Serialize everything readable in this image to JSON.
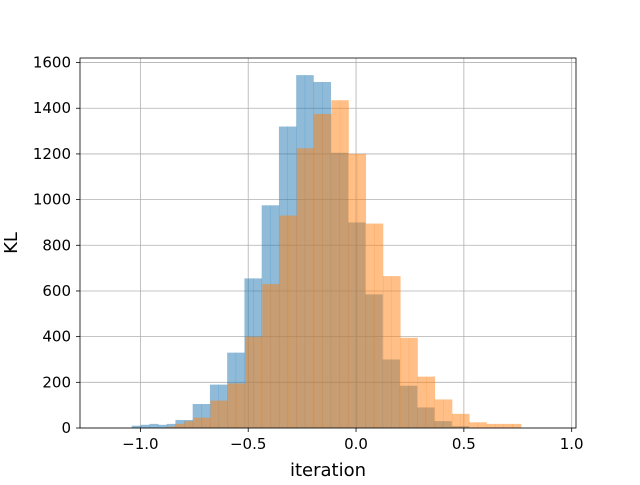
{
  "chart_data": {
    "type": "bar",
    "title": "",
    "xlabel": "iteration",
    "ylabel": "KL",
    "xlim": [
      -1.28,
      1.02
    ],
    "ylim": [
      0,
      1620
    ],
    "grid": true,
    "legend": "none",
    "x_ticks": [
      {
        "value": -1.0,
        "label": "−1.0"
      },
      {
        "value": -0.5,
        "label": "−0.5"
      },
      {
        "value": 0.0,
        "label": "0.0"
      },
      {
        "value": 0.5,
        "label": "0.5"
      },
      {
        "value": 1.0,
        "label": "1.0"
      }
    ],
    "y_ticks": [
      {
        "value": 0,
        "label": "0"
      },
      {
        "value": 200,
        "label": "200"
      },
      {
        "value": 400,
        "label": "400"
      },
      {
        "value": 600,
        "label": "600"
      },
      {
        "value": 800,
        "label": "800"
      },
      {
        "value": 1000,
        "label": "1000"
      },
      {
        "value": 1200,
        "label": "1200"
      },
      {
        "value": 1400,
        "label": "1400"
      },
      {
        "value": 1600,
        "label": "1600"
      }
    ],
    "series": [
      {
        "color": "#1f77b4",
        "opacity": 0.5,
        "bins": [
          {
            "x0": -1.04,
            "x1": -0.9975,
            "y": 10
          },
          {
            "x0": -0.9975,
            "x1": -0.9575,
            "y": 14
          },
          {
            "x0": -0.9575,
            "x1": -0.9175,
            "y": 18
          },
          {
            "x0": -0.9175,
            "x1": -0.8775,
            "y": 14
          },
          {
            "x0": -0.8775,
            "x1": -0.8375,
            "y": 18
          },
          {
            "x0": -0.8375,
            "x1": -0.7975,
            "y": 35
          },
          {
            "x0": -0.7975,
            "x1": -0.7575,
            "y": 35
          },
          {
            "x0": -0.7575,
            "x1": -0.7175,
            "y": 105
          },
          {
            "x0": -0.7175,
            "x1": -0.6775,
            "y": 105
          },
          {
            "x0": -0.6775,
            "x1": -0.6375,
            "y": 190
          },
          {
            "x0": -0.6375,
            "x1": -0.5975,
            "y": 190
          },
          {
            "x0": -0.5975,
            "x1": -0.5575,
            "y": 330
          },
          {
            "x0": -0.5575,
            "x1": -0.5175,
            "y": 330
          },
          {
            "x0": -0.5175,
            "x1": -0.4775,
            "y": 655
          },
          {
            "x0": -0.4775,
            "x1": -0.4375,
            "y": 655
          },
          {
            "x0": -0.4375,
            "x1": -0.3975,
            "y": 975
          },
          {
            "x0": -0.3975,
            "x1": -0.3575,
            "y": 975
          },
          {
            "x0": -0.3575,
            "x1": -0.3175,
            "y": 1320
          },
          {
            "x0": -0.3175,
            "x1": -0.2775,
            "y": 1320
          },
          {
            "x0": -0.2775,
            "x1": -0.2375,
            "y": 1545
          },
          {
            "x0": -0.2375,
            "x1": -0.1975,
            "y": 1545
          },
          {
            "x0": -0.1975,
            "x1": -0.1575,
            "y": 1515
          },
          {
            "x0": -0.1575,
            "x1": -0.1175,
            "y": 1515
          },
          {
            "x0": -0.1175,
            "x1": -0.0775,
            "y": 1205
          },
          {
            "x0": -0.0775,
            "x1": -0.0375,
            "y": 1205
          },
          {
            "x0": -0.0375,
            "x1": 0.0025,
            "y": 900
          },
          {
            "x0": 0.0025,
            "x1": 0.0425,
            "y": 900
          },
          {
            "x0": 0.0425,
            "x1": 0.0825,
            "y": 585
          },
          {
            "x0": 0.0825,
            "x1": 0.1225,
            "y": 585
          },
          {
            "x0": 0.1225,
            "x1": 0.1625,
            "y": 300
          },
          {
            "x0": 0.1625,
            "x1": 0.2025,
            "y": 300
          },
          {
            "x0": 0.2025,
            "x1": 0.2425,
            "y": 185
          },
          {
            "x0": 0.2425,
            "x1": 0.2825,
            "y": 185
          },
          {
            "x0": 0.2825,
            "x1": 0.3225,
            "y": 90
          },
          {
            "x0": 0.3225,
            "x1": 0.3625,
            "y": 90
          },
          {
            "x0": 0.3625,
            "x1": 0.4025,
            "y": 30
          },
          {
            "x0": 0.4025,
            "x1": 0.4425,
            "y": 30
          },
          {
            "x0": 0.4425,
            "x1": 0.4825,
            "y": 8
          },
          {
            "x0": 0.4825,
            "x1": 0.5225,
            "y": 8
          }
        ]
      },
      {
        "color": "#ff7f0e",
        "opacity": 0.5,
        "bins": [
          {
            "x0": -0.875,
            "x1": -0.835,
            "y": 6
          },
          {
            "x0": -0.835,
            "x1": -0.795,
            "y": 18
          },
          {
            "x0": -0.795,
            "x1": -0.755,
            "y": 30
          },
          {
            "x0": -0.755,
            "x1": -0.715,
            "y": 45
          },
          {
            "x0": -0.715,
            "x1": -0.675,
            "y": 45
          },
          {
            "x0": -0.675,
            "x1": -0.635,
            "y": 120
          },
          {
            "x0": -0.635,
            "x1": -0.595,
            "y": 120
          },
          {
            "x0": -0.595,
            "x1": -0.555,
            "y": 195
          },
          {
            "x0": -0.555,
            "x1": -0.515,
            "y": 195
          },
          {
            "x0": -0.515,
            "x1": -0.475,
            "y": 400
          },
          {
            "x0": -0.475,
            "x1": -0.435,
            "y": 400
          },
          {
            "x0": -0.435,
            "x1": -0.395,
            "y": 630
          },
          {
            "x0": -0.395,
            "x1": -0.355,
            "y": 630
          },
          {
            "x0": -0.355,
            "x1": -0.315,
            "y": 930
          },
          {
            "x0": -0.315,
            "x1": -0.275,
            "y": 930
          },
          {
            "x0": -0.275,
            "x1": -0.235,
            "y": 1225
          },
          {
            "x0": -0.235,
            "x1": -0.195,
            "y": 1225
          },
          {
            "x0": -0.195,
            "x1": -0.155,
            "y": 1375
          },
          {
            "x0": -0.155,
            "x1": -0.115,
            "y": 1375
          },
          {
            "x0": -0.115,
            "x1": -0.075,
            "y": 1435
          },
          {
            "x0": -0.075,
            "x1": -0.035,
            "y": 1435
          },
          {
            "x0": -0.035,
            "x1": 0.005,
            "y": 1200
          },
          {
            "x0": 0.005,
            "x1": 0.045,
            "y": 1200
          },
          {
            "x0": 0.045,
            "x1": 0.085,
            "y": 895
          },
          {
            "x0": 0.085,
            "x1": 0.125,
            "y": 895
          },
          {
            "x0": 0.125,
            "x1": 0.165,
            "y": 665
          },
          {
            "x0": 0.165,
            "x1": 0.205,
            "y": 665
          },
          {
            "x0": 0.205,
            "x1": 0.245,
            "y": 395
          },
          {
            "x0": 0.245,
            "x1": 0.285,
            "y": 395
          },
          {
            "x0": 0.285,
            "x1": 0.325,
            "y": 225
          },
          {
            "x0": 0.325,
            "x1": 0.365,
            "y": 225
          },
          {
            "x0": 0.365,
            "x1": 0.405,
            "y": 125
          },
          {
            "x0": 0.405,
            "x1": 0.445,
            "y": 125
          },
          {
            "x0": 0.445,
            "x1": 0.485,
            "y": 62
          },
          {
            "x0": 0.485,
            "x1": 0.525,
            "y": 62
          },
          {
            "x0": 0.525,
            "x1": 0.565,
            "y": 25
          },
          {
            "x0": 0.565,
            "x1": 0.605,
            "y": 25
          },
          {
            "x0": 0.605,
            "x1": 0.645,
            "y": 18
          },
          {
            "x0": 0.645,
            "x1": 0.685,
            "y": 18
          },
          {
            "x0": 0.685,
            "x1": 0.725,
            "y": 18
          },
          {
            "x0": 0.725,
            "x1": 0.765,
            "y": 18
          }
        ]
      }
    ]
  }
}
